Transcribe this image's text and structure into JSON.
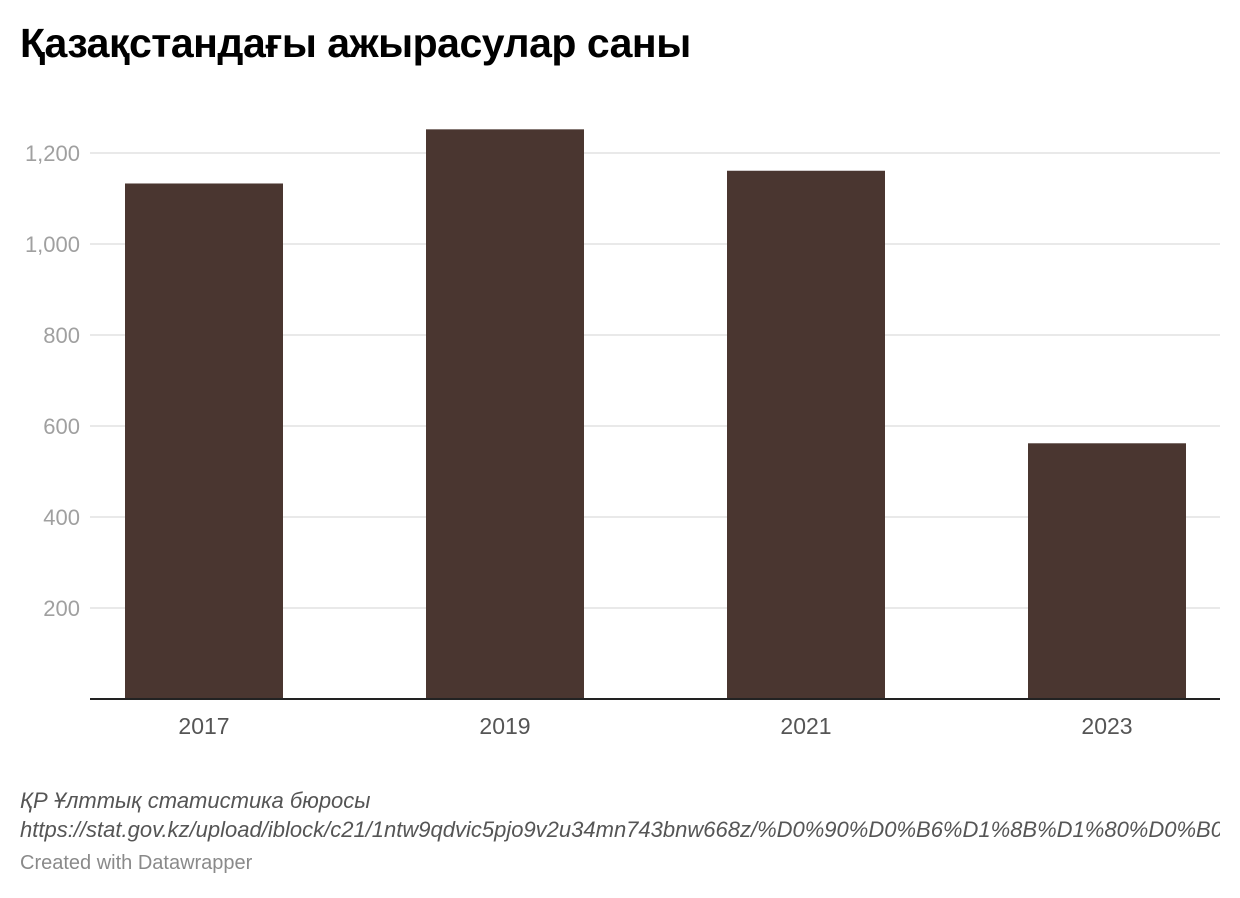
{
  "chart_data": {
    "type": "bar",
    "title": "Қазақстандағы ажырасулар саны",
    "categories": [
      "2017",
      "2019",
      "2021",
      "2023"
    ],
    "values": [
      1133,
      1252,
      1161,
      562
    ],
    "ylim": [
      0,
      1300
    ],
    "yticks": [
      200,
      400,
      600,
      800,
      1000,
      1200
    ],
    "ytick_labels": [
      "200",
      "400",
      "600",
      "800",
      "1,000",
      "1,200"
    ],
    "grid": true,
    "bar_color": "#4a3630",
    "xlabel": "",
    "ylabel": ""
  },
  "footer": {
    "source_name": "ҚР Ұлттық статистика бюросы",
    "source_url": "https://stat.gov.kz/upload/iblock/c21/1ntw9qdvic5pjo9v2u34mn743bnw668z/%D0%90%D0%B6%D1%8B%D1%80%D0%B0%D1%81%D1%83%D0%BB%D0%B0%D1%80",
    "credit": "Created with Datawrapper"
  }
}
